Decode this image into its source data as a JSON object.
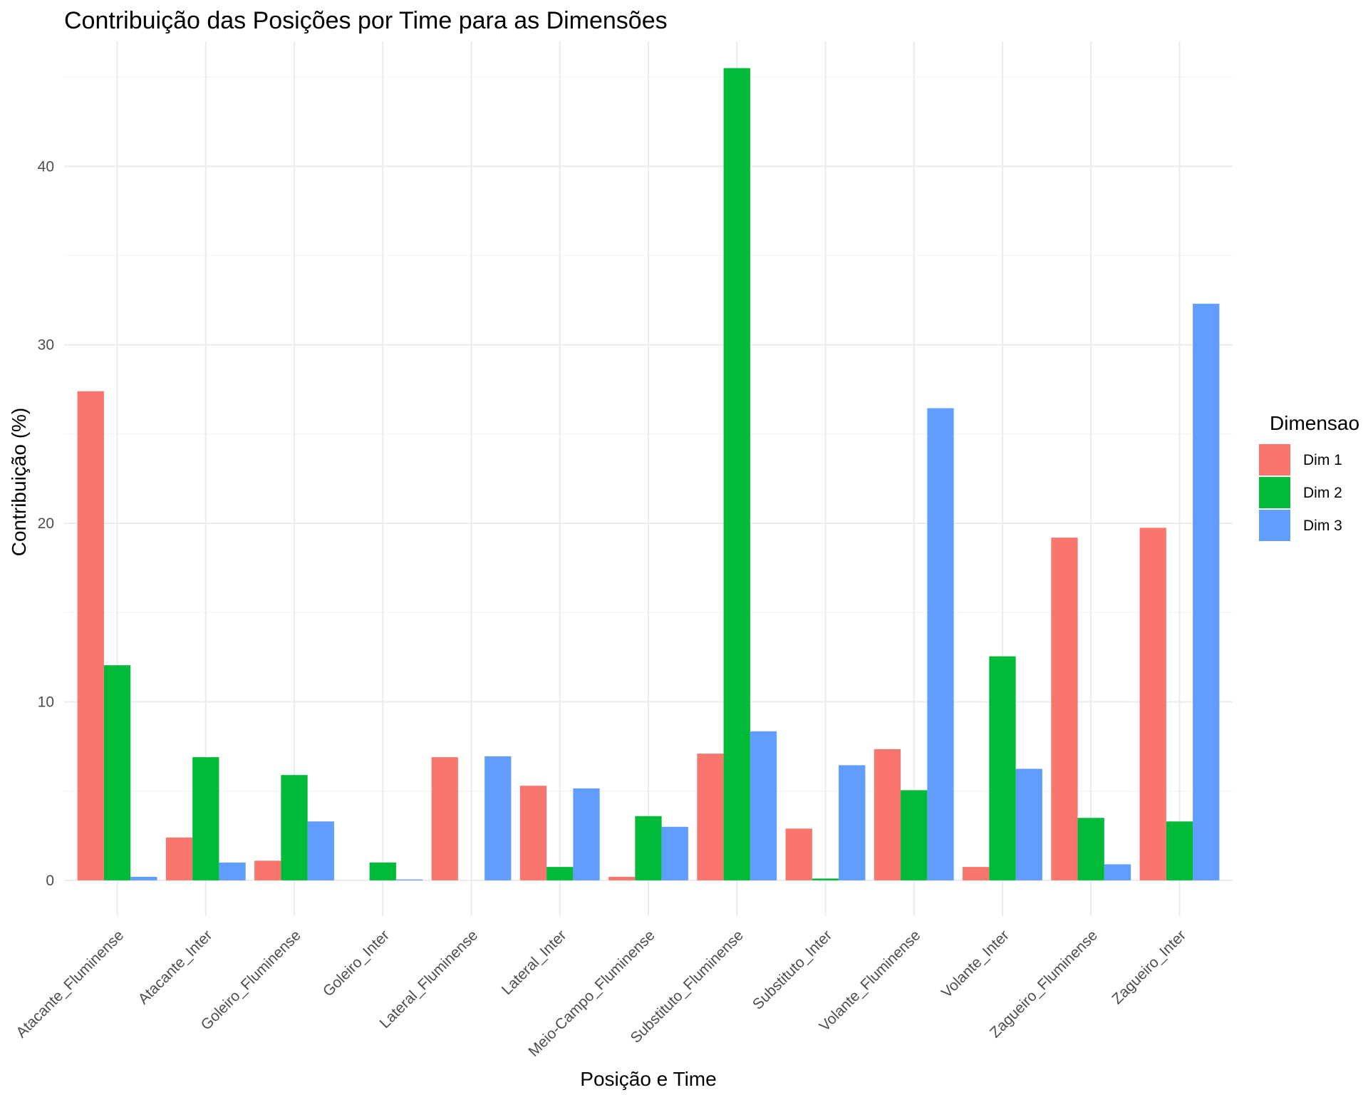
{
  "chart_data": {
    "type": "bar",
    "title": "Contribuição das Posições por Time para as Dimensões",
    "xlabel": "Posição e Time",
    "ylabel": "Contribuição (%)",
    "ylim": [
      -2,
      47
    ],
    "yticks": [
      0,
      10,
      20,
      30,
      40
    ],
    "grid": true,
    "legend_position": "right",
    "legend_title": "Dimensao",
    "categories": [
      "Atacante_Fluminense",
      "Atacante_Inter",
      "Goleiro_Fluminense",
      "Goleiro_Inter",
      "Lateral_Fluminense",
      "Lateral_Inter",
      "Meio-Campo_Fluminense",
      "Substituto_Fluminense",
      "Substituto_Inter",
      "Volante_Fluminense",
      "Volante_Inter",
      "Zagueiro_Fluminense",
      "Zagueiro_Inter"
    ],
    "series": [
      {
        "name": "Dim 1",
        "color": "#F8766D",
        "values": [
          27.4,
          2.4,
          1.1,
          0.0,
          6.9,
          5.3,
          0.2,
          7.1,
          2.9,
          7.35,
          0.75,
          19.2,
          19.75
        ]
      },
      {
        "name": "Dim 2",
        "color": "#00BA38",
        "values": [
          12.05,
          6.9,
          5.9,
          1.0,
          0.0,
          0.75,
          3.6,
          45.5,
          0.1,
          5.05,
          12.55,
          3.5,
          3.3
        ]
      },
      {
        "name": "Dim 3",
        "color": "#619CFF",
        "values": [
          0.2,
          1.0,
          3.3,
          0.05,
          6.95,
          5.15,
          3.0,
          8.35,
          6.45,
          26.45,
          6.25,
          0.9,
          32.3
        ]
      }
    ]
  }
}
